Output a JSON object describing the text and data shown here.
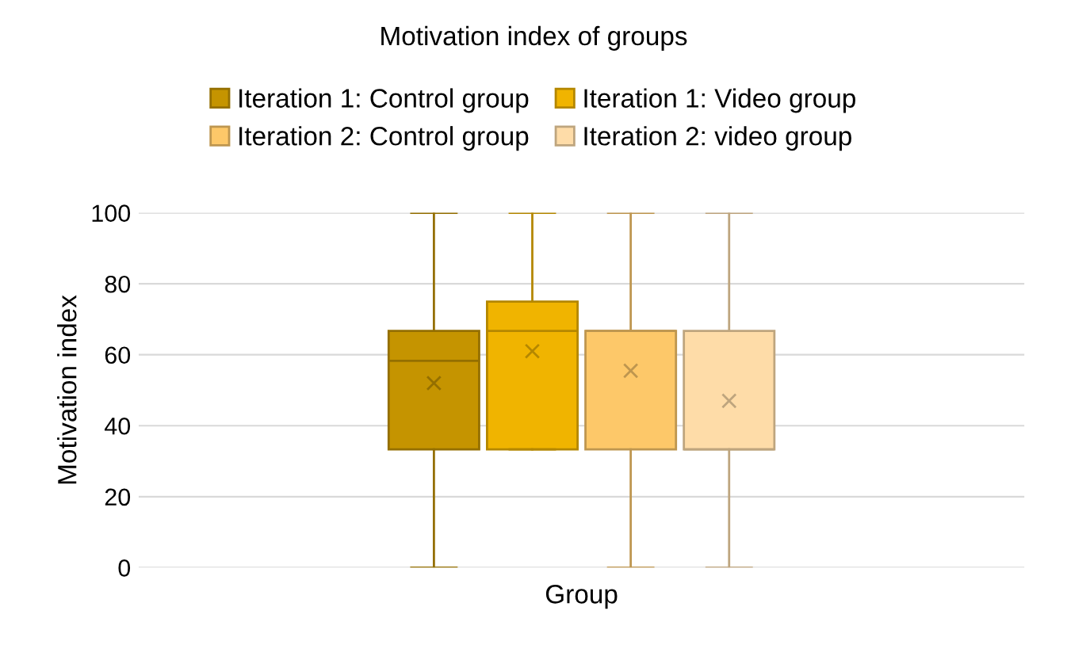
{
  "chart_data": {
    "type": "box",
    "title": "Motivation index of groups",
    "xlabel": "Group",
    "ylabel": "Motivation index",
    "categories": [
      null
    ],
    "series": [
      {
        "name": "Iteration 1: Control group",
        "color": "#c59400",
        "boxes": [
          {
            "low": 0,
            "q1": 33.3,
            "median": 58.3,
            "q3": 66.7,
            "high": 100,
            "mean": 52
          }
        ]
      },
      {
        "name": "Iteration 1: Video group",
        "color": "#f0b400",
        "boxes": [
          {
            "low": 33.3,
            "q1": 33.3,
            "median": 66.7,
            "q3": 75,
            "high": 100,
            "mean": 61
          }
        ]
      },
      {
        "name": "Iteration 2: Control group",
        "color": "#fdc869",
        "boxes": [
          {
            "low": 0,
            "q1": 33.3,
            "median": 66.7,
            "q3": 66.7,
            "high": 100,
            "mean": 55.5
          }
        ]
      },
      {
        "name": "Iteration 2: video group",
        "color": "#fedca8",
        "boxes": [
          {
            "low": 0,
            "q1": 33.3,
            "median": 33.3,
            "q3": 66.7,
            "high": 100,
            "mean": 47
          }
        ]
      }
    ],
    "ylim": [
      0,
      100
    ],
    "yticks": [
      0,
      20,
      40,
      60,
      80,
      100
    ],
    "grid": "y",
    "legend": "top"
  }
}
